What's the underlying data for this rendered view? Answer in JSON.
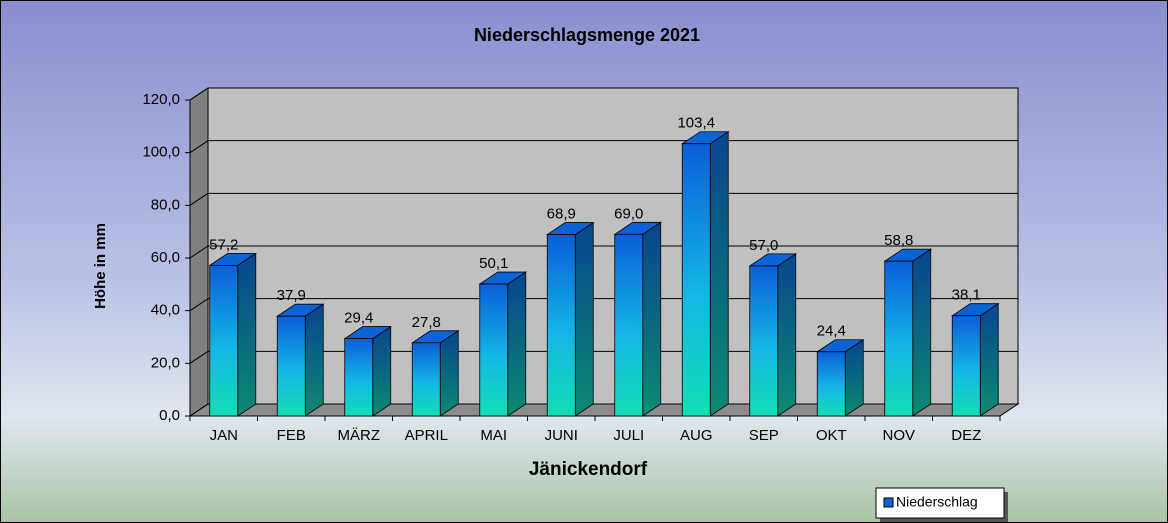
{
  "chart_data": {
    "type": "bar3d",
    "title": "Niederschlagsmenge  2021",
    "x_label": "Jänickendorf",
    "y_label": "Höhe in mm",
    "categories": [
      "JAN",
      "FEB",
      "MÄRZ",
      "APRIL",
      "MAI",
      "JUNI",
      "JULI",
      "AUG",
      "SEP",
      "OKT",
      "NOV",
      "DEZ"
    ],
    "series": [
      {
        "name": "Niederschlag",
        "color": "#0a64d8",
        "values": [
          57.2,
          37.9,
          29.4,
          27.8,
          50.1,
          68.9,
          69.0,
          103.4,
          57.0,
          24.4,
          58.8,
          38.1
        ],
        "value_labels": [
          "57,2",
          "37,9",
          "29,4",
          "27,8",
          "50,1",
          "68,9",
          "69,0",
          "103,4",
          "57,0",
          "24,4",
          "58,8",
          "38,1"
        ]
      }
    ],
    "ylim": [
      0,
      120
    ],
    "yticks": [
      {
        "value": 0,
        "label": "0,0"
      },
      {
        "value": 20,
        "label": "20,0"
      },
      {
        "value": 40,
        "label": "40,0"
      },
      {
        "value": 60,
        "label": "60,0"
      },
      {
        "value": 80,
        "label": "80,0"
      },
      {
        "value": 100,
        "label": "100,0"
      },
      {
        "value": 120,
        "label": "120,0"
      }
    ],
    "grid": true,
    "legend": "bottom-right"
  }
}
